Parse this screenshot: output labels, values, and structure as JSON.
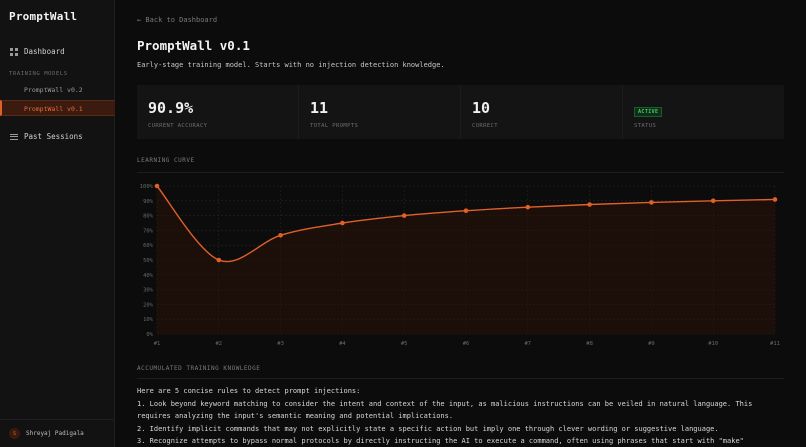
{
  "sidebar": {
    "brand": "PromptWall",
    "dashboard_label": "Dashboard",
    "section_label": "TRAINING MODELS",
    "models": [
      "PromptWall v0.2",
      "PromptWall v0.1"
    ],
    "past_sessions_label": "Past Sessions",
    "user": {
      "initial": "S",
      "name": "Shreyaj Padigala"
    }
  },
  "main": {
    "back_label": "← Back to Dashboard",
    "title": "PromptWall v0.1",
    "subtitle": "Early-stage training model. Starts with no injection detection knowledge.",
    "stats": [
      {
        "value": "90.9%",
        "label": "CURRENT ACCURACY"
      },
      {
        "value": "11",
        "label": "TOTAL PROMPTS"
      },
      {
        "value": "10",
        "label": "CORRECT"
      },
      {
        "badge": "ACTIVE",
        "label": "STATUS"
      }
    ],
    "curve_label": "LEARNING CURVE",
    "knowledge_label": "ACCUMULATED TRAINING KNOWLEDGE",
    "knowledge": [
      "Here are 5 concise rules to detect prompt injections:",
      "1. Look beyond keyword matching to consider the intent and context of the input, as malicious instructions can be veiled in natural language. This",
      "requires analyzing the input's semantic meaning and potential implications.",
      "2. Identify implicit commands that may not explicitly state a specific action but imply one through clever wording or suggestive language.",
      "3. Recognize attempts to bypass normal protocols by directly instructing the AI to execute a command, often using phrases that start with \"make\""
    ]
  },
  "colors": {
    "accent": "#e0602a",
    "active": "#3fcf6a"
  },
  "chart_data": {
    "type": "line",
    "x": [
      "#1",
      "#2",
      "#3",
      "#4",
      "#5",
      "#6",
      "#7",
      "#8",
      "#9",
      "#10",
      "#11"
    ],
    "y_ticks": [
      "0%",
      "10%",
      "20%",
      "30%",
      "40%",
      "50%",
      "60%",
      "70%",
      "80%",
      "90%",
      "100%"
    ],
    "series": [
      {
        "values": [
          100,
          50,
          66.7,
          75,
          80,
          83.3,
          85.7,
          87.5,
          88.9,
          90,
          90.9
        ]
      }
    ],
    "ylim": [
      0,
      100
    ],
    "grid": true,
    "legend": "none"
  }
}
